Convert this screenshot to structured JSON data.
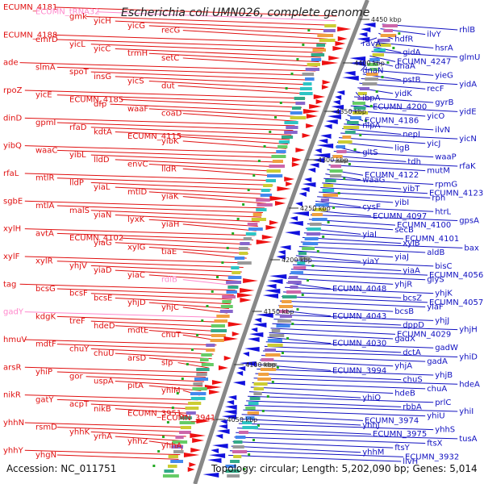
{
  "title": "Escherichia coli UMN026, complete genome",
  "footer": {
    "accession": "Accession: NC_011751",
    "summary": "Topology: circular; Length: 5,202,090 bp; Genes: 5,014"
  },
  "colors": {
    "left_label": "#e01010",
    "left_label_pink": "#ff88cc",
    "right_label": "#1010c0",
    "axis": "#888888",
    "forward_feature": "#ee1111",
    "reverse_feature": "#1111dd",
    "tick_marker": "#22aa22"
  },
  "kbp_markers": [
    "4450 kbp",
    "4400 kbp",
    "4350 kbp",
    "4300 kbp",
    "4250 kbp",
    "4200 kbp",
    "4150 kbp",
    "4100 kbp",
    "4050 kbp"
  ],
  "left_genes": [
    {
      "name": "ECUMN_4181",
      "pink": false
    },
    {
      "name": "ECUMN_tRNA32",
      "pink": true
    },
    {
      "name": "gmk",
      "pink": false
    },
    {
      "name": "yicH",
      "pink": false
    },
    {
      "name": "yicG",
      "pink": false
    },
    {
      "name": "recG",
      "pink": false
    },
    {
      "name": "ECUMN_4188",
      "pink": false
    },
    {
      "name": "emrD",
      "pink": false
    },
    {
      "name": "yicL",
      "pink": false
    },
    {
      "name": "yicC",
      "pink": false
    },
    {
      "name": "trmH",
      "pink": false
    },
    {
      "name": "setC",
      "pink": false
    },
    {
      "name": "ade",
      "pink": false
    },
    {
      "name": "slmA",
      "pink": false
    },
    {
      "name": "spoT",
      "pink": false
    },
    {
      "name": "insG",
      "pink": false
    },
    {
      "name": "yicS",
      "pink": false
    },
    {
      "name": "dut",
      "pink": false
    },
    {
      "name": "rpoZ",
      "pink": false
    },
    {
      "name": "yicE",
      "pink": false
    },
    {
      "name": "ECUMN_4185",
      "pink": false
    },
    {
      "name": "dfp",
      "pink": false
    },
    {
      "name": "waaF",
      "pink": false
    },
    {
      "name": "coaD",
      "pink": false
    },
    {
      "name": "dinD",
      "pink": false
    },
    {
      "name": "gpmI",
      "pink": false
    },
    {
      "name": "rfaD",
      "pink": false
    },
    {
      "name": "kdtA",
      "pink": false
    },
    {
      "name": "ECUMN_4115",
      "pink": false
    },
    {
      "name": "yibK",
      "pink": false
    },
    {
      "name": "yibQ",
      "pink": false
    },
    {
      "name": "waaC",
      "pink": false
    },
    {
      "name": "yibL",
      "pink": false
    },
    {
      "name": "lldD",
      "pink": false
    },
    {
      "name": "envC",
      "pink": false
    },
    {
      "name": "lldR",
      "pink": false
    },
    {
      "name": "rfaL",
      "pink": false
    },
    {
      "name": "mtlR",
      "pink": false
    },
    {
      "name": "lldP",
      "pink": false
    },
    {
      "name": "yiaL",
      "pink": false
    },
    {
      "name": "mtlD",
      "pink": false
    },
    {
      "name": "yiaK",
      "pink": false
    },
    {
      "name": "sgbE",
      "pink": false
    },
    {
      "name": "mtlA",
      "pink": false
    },
    {
      "name": "malS",
      "pink": false
    },
    {
      "name": "yiaN",
      "pink": false
    },
    {
      "name": "lyxK",
      "pink": false
    },
    {
      "name": "yiaH",
      "pink": false
    },
    {
      "name": "xylH",
      "pink": false
    },
    {
      "name": "avtA",
      "pink": false
    },
    {
      "name": "ECUMN_4102",
      "pink": false
    },
    {
      "name": "yiaG",
      "pink": false
    },
    {
      "name": "xylG",
      "pink": false
    },
    {
      "name": "tiaE",
      "pink": false
    },
    {
      "name": "xylF",
      "pink": false
    },
    {
      "name": "xylR",
      "pink": false
    },
    {
      "name": "yhjV",
      "pink": false
    },
    {
      "name": "yiaD",
      "pink": false
    },
    {
      "name": "yiaC",
      "pink": false
    },
    {
      "name": "rdlB",
      "pink": true
    },
    {
      "name": "tag",
      "pink": false
    },
    {
      "name": "bcsG",
      "pink": false
    },
    {
      "name": "bcsF",
      "pink": false
    },
    {
      "name": "bcsE",
      "pink": false
    },
    {
      "name": "yhjD",
      "pink": false
    },
    {
      "name": "yhjC",
      "pink": false
    },
    {
      "name": "gadY",
      "pink": true
    },
    {
      "name": "kdgK",
      "pink": false
    },
    {
      "name": "treF",
      "pink": false
    },
    {
      "name": "hdeD",
      "pink": false
    },
    {
      "name": "mdtE",
      "pink": false
    },
    {
      "name": "chuT",
      "pink": false
    },
    {
      "name": "hmuV",
      "pink": false
    },
    {
      "name": "mdtF",
      "pink": false
    },
    {
      "name": "chuY",
      "pink": false
    },
    {
      "name": "chuU",
      "pink": false
    },
    {
      "name": "arsD",
      "pink": false
    },
    {
      "name": "slp",
      "pink": false
    },
    {
      "name": "arsR",
      "pink": false
    },
    {
      "name": "yhiP",
      "pink": false
    },
    {
      "name": "gor",
      "pink": false
    },
    {
      "name": "uspA",
      "pink": false
    },
    {
      "name": "pitA",
      "pink": false
    },
    {
      "name": "yhiM",
      "pink": false
    },
    {
      "name": "nikR",
      "pink": false
    },
    {
      "name": "gatY",
      "pink": false
    },
    {
      "name": "acpT",
      "pink": false
    },
    {
      "name": "nikB",
      "pink": false
    },
    {
      "name": "ECUMN_3951",
      "pink": false
    },
    {
      "name": "ECUMN_3941",
      "pink": false
    },
    {
      "name": "yhhN",
      "pink": false
    },
    {
      "name": "rsmD",
      "pink": false
    },
    {
      "name": "yhhK",
      "pink": false
    },
    {
      "name": "yrhA",
      "pink": false
    },
    {
      "name": "yhhZ",
      "pink": false
    },
    {
      "name": "yhhA",
      "pink": false
    },
    {
      "name": "yhhY",
      "pink": false
    },
    {
      "name": "yhgN",
      "pink": false
    }
  ],
  "right_genes": [
    "rhlB",
    "ilvY",
    "hdfR",
    "ravA",
    "hsrA",
    "gidA",
    "glmU",
    "ECUMN_4247",
    "dnaA",
    "dnaN",
    "yieG",
    "pstB",
    "yidA",
    "recF",
    "yidK",
    "ibpA",
    "gyrB",
    "ECUMN_4200",
    "yidE",
    "yicO",
    "ECUMN_4186",
    "nlpA",
    "ilvN",
    "nepI",
    "yicN",
    "yicJ",
    "ligB",
    "gltS",
    "waaP",
    "tdh",
    "rfaK",
    "mutM",
    "ECUMN_4122",
    "waaG",
    "rpmG",
    "yibT",
    "ECUMN_4123",
    "rph",
    "yibI",
    "cysE",
    "htrL",
    "ECUMN_4097",
    "gpsA",
    "ECUMN_4100",
    "secB",
    "yiaI",
    "ECUMN_4101",
    "xylB",
    "bax",
    "aldB",
    "yiaJ",
    "yiaY",
    "bisC",
    "yiaA",
    "ECUMN_4056",
    "glyS",
    "yhjR",
    "ECUMN_4048",
    "yhjK",
    "bcsZ",
    "ECUMN_4057",
    "yiaF",
    "bcsB",
    "ECUMN_4043",
    "yhjJ",
    "dppD",
    "yhjH",
    "ECUMN_4029",
    "gadX",
    "ECUMN_4030",
    "gadW",
    "dctA",
    "yhiD",
    "gadA",
    "yhjA",
    "ECUMN_3994",
    "yhjB",
    "chuS",
    "hdeA",
    "chuA",
    "hdeB",
    "yhiQ",
    "prlC",
    "rbbA",
    "yhiI",
    "yhiU",
    "ECUMN_3974",
    "yhhJ",
    "yhhS",
    "ECUMN_3975",
    "tusA",
    "ftsX",
    "ftsY",
    "yhhM",
    "ECUMN_3932",
    "livH"
  ]
}
